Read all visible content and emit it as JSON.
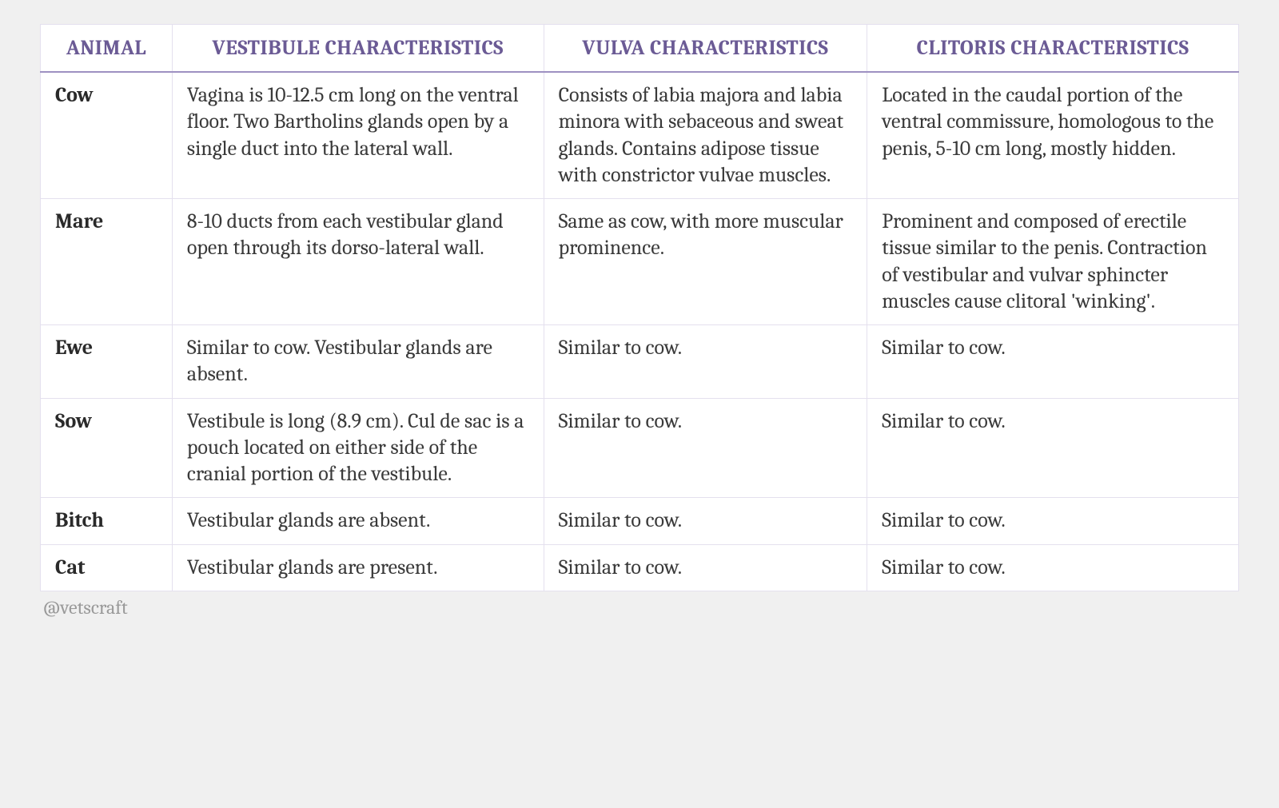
{
  "table": {
    "columns": [
      "ANIMAL",
      "VESTIBULE CHARACTERISTICS",
      "VULVA CHARACTERISTICS",
      "CLITORIS CHARACTERISTICS"
    ],
    "column_widths_pct": [
      11,
      31,
      27,
      31
    ],
    "header_color": "#6b5b95",
    "header_fontsize": 26,
    "header_border_bottom": "#9e91c2",
    "cell_border_color": "#e4e0ee",
    "body_fontsize": 26,
    "body_color": "#3a3a3a",
    "animal_fontweight": "bold",
    "background_color": "#ffffff",
    "rows": [
      {
        "animal": "Cow",
        "vestibule": "Vagina is 10-12.5 cm long on the ventral floor. Two Bartholins glands open by a single duct into the lateral wall.",
        "vulva": "Consists of labia majora and labia minora with sebaceous and sweat glands. Contains adipose tissue with constrictor vulvae muscles.",
        "clitoris": "Located in the caudal portion of the ventral commissure, homologous to the penis, 5-10 cm long, mostly hidden."
      },
      {
        "animal": "Mare",
        "vestibule": "8-10 ducts from each vestibular gland open through its dorso-lateral wall.",
        "vulva": "Same as cow, with more muscular prominence.",
        "clitoris": "Prominent and composed of erectile tissue similar to the penis. Contraction of vestibular and vulvar sphincter muscles cause clitoral 'winking'."
      },
      {
        "animal": "Ewe",
        "vestibule": "Similar to cow. Vestibular glands are absent.",
        "vulva": "Similar to cow.",
        "clitoris": "Similar to cow."
      },
      {
        "animal": "Sow",
        "vestibule": "Vestibule is long (8.9 cm). Cul de sac is a pouch located on either side of the cranial portion of the vestibule.",
        "vulva": "Similar to cow.",
        "clitoris": "Similar to cow."
      },
      {
        "animal": "Bitch",
        "vestibule": "Vestibular glands are absent.",
        "vulva": "Similar to cow.",
        "clitoris": "Similar to cow."
      },
      {
        "animal": "Cat",
        "vestibule": "Vestibular glands are present.",
        "vulva": "Similar to cow.",
        "clitoris": "Similar to cow."
      }
    ]
  },
  "page_background": "#f0f0f0",
  "attribution": "@vetscraft",
  "attribution_color": "#9a9a9a"
}
